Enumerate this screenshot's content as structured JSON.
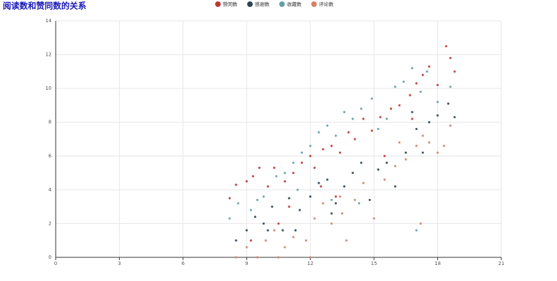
{
  "chart_data": {
    "type": "scatter",
    "title": "阅读数和赞同数的关系",
    "xlim": [
      0,
      21
    ],
    "xticks": [
      0,
      3,
      6,
      9,
      12,
      15,
      18,
      21
    ],
    "ylim": [
      0,
      14
    ],
    "yticks": [
      0,
      2,
      4,
      6,
      8,
      10,
      12,
      14
    ],
    "grid": true,
    "series": [
      {
        "name": "赞同数",
        "color": "#c23531",
        "x": [
          8.2,
          8.5,
          9,
          9.3,
          9.6,
          10,
          10.3,
          10.8,
          11.2,
          11.6,
          12,
          12.2,
          12.6,
          13,
          13.4,
          13.8,
          14.1,
          14.5,
          14.9,
          15.3,
          15.8,
          16.2,
          16.7,
          17,
          17.3,
          17.6,
          18,
          18.4,
          18.6,
          18.8,
          12.5,
          13.2,
          11,
          10.5,
          9.2,
          15.5,
          16.8
        ],
        "values": [
          3.5,
          4.3,
          4.5,
          4.8,
          5.3,
          4.2,
          5.3,
          4.5,
          5,
          5.6,
          6,
          5.3,
          6.4,
          6.6,
          6.2,
          7.4,
          7,
          8.2,
          7.5,
          8.3,
          8.8,
          9,
          9.6,
          10.3,
          10.8,
          11.3,
          10.2,
          12.5,
          11.8,
          11,
          4.2,
          3.6,
          3,
          2,
          1,
          6,
          8.2
        ]
      },
      {
        "name": "感谢数",
        "color": "#2f4554",
        "x": [
          8.5,
          9,
          9.4,
          9.8,
          10.2,
          10.7,
          11,
          11.5,
          12,
          12.4,
          12.8,
          13.2,
          13.6,
          14,
          14.4,
          14.8,
          15.2,
          15.6,
          16,
          16.5,
          17,
          17.3,
          17.6,
          18,
          18.5,
          18.8,
          11.3,
          10,
          13,
          16.8
        ],
        "values": [
          1,
          1.6,
          2.4,
          2,
          3,
          1.6,
          3.5,
          2.8,
          3.6,
          4.4,
          4.6,
          3.2,
          4.2,
          5,
          5.6,
          3.4,
          5.2,
          5.6,
          4.2,
          6.2,
          7.6,
          6.2,
          8,
          8.4,
          9.1,
          8.3,
          1.6,
          1.6,
          2.6,
          8.6
        ]
      },
      {
        "name": "收藏数",
        "color": "#61a0a8",
        "x": [
          8.2,
          8.6,
          9.2,
          9.8,
          10.4,
          10.8,
          11.2,
          11.6,
          12,
          12.4,
          12.8,
          13.2,
          13.6,
          14,
          14.4,
          14.9,
          15.2,
          15.6,
          16,
          16.4,
          16.8,
          17.2,
          17.5,
          18,
          18.6,
          13,
          14.3,
          17,
          11.4,
          9.5
        ],
        "values": [
          2.3,
          3.2,
          2.8,
          3.6,
          4.8,
          5,
          5.6,
          6.2,
          6.6,
          7.4,
          7.8,
          7.2,
          8.6,
          8.2,
          8.8,
          9.4,
          7.6,
          8.2,
          10.1,
          10.4,
          11.2,
          9.8,
          11,
          9.2,
          10.1,
          3.4,
          3.2,
          1.6,
          4,
          3.4
        ]
      },
      {
        "name": "评论数",
        "color": "#d48265",
        "x": [
          8.5,
          9,
          9.5,
          9.9,
          10.3,
          10.8,
          11.2,
          11.8,
          12.2,
          12.6,
          13,
          13.4,
          13.7,
          14.1,
          14.5,
          15,
          15.5,
          16,
          16.5,
          17,
          17.3,
          17.6,
          18,
          18.3,
          18.6,
          17.2,
          12,
          10.5,
          13.5,
          16.2
        ],
        "values": [
          0,
          0.6,
          0,
          1,
          1.6,
          0.6,
          1.2,
          1,
          2.3,
          3.2,
          2,
          3.6,
          1,
          3.4,
          4.4,
          2.3,
          4.6,
          5.4,
          5.8,
          6.6,
          7.2,
          6.8,
          6.2,
          6.6,
          7.8,
          2,
          0,
          0,
          2.6,
          6.8
        ]
      }
    ]
  }
}
